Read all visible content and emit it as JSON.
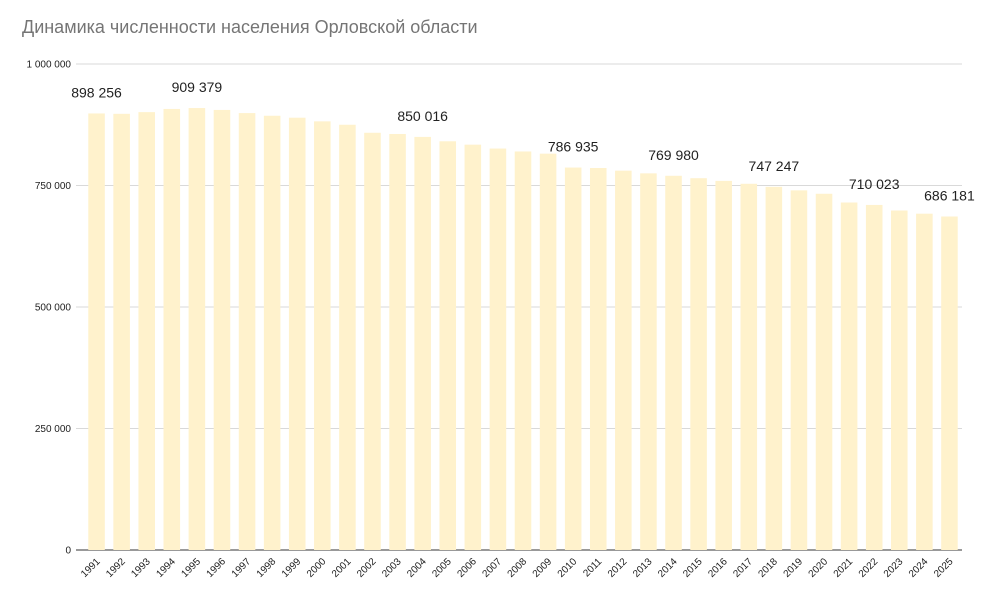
{
  "title": "Динамика численности населения Орловской области",
  "chart_data": {
    "type": "bar",
    "title": "Динамика численности населения Орловской области",
    "xlabel": "",
    "ylabel": "",
    "ylim": [
      0,
      1000000
    ],
    "y_ticks": [
      0,
      250000,
      500000,
      750000,
      1000000
    ],
    "y_tick_labels": [
      "0",
      "250 000",
      "500 000",
      "750 000",
      "1 000 000"
    ],
    "grid": true,
    "legend": "none",
    "bar_color": "#FFF2CC",
    "categories": [
      "1991",
      "1992",
      "1993",
      "1994",
      "1995",
      "1996",
      "1997",
      "1998",
      "1999",
      "2000",
      "2001",
      "2002",
      "2003",
      "2004",
      "2005",
      "2006",
      "2007",
      "2008",
      "2009",
      "2010",
      "2011",
      "2012",
      "2013",
      "2014",
      "2015",
      "2016",
      "2017",
      "2018",
      "2019",
      "2020",
      "2021",
      "2022",
      "2023",
      "2024",
      "2025"
    ],
    "values": [
      898256,
      897500,
      901000,
      907500,
      909379,
      905500,
      899000,
      893500,
      889500,
      882000,
      875000,
      858500,
      856000,
      850016,
      841000,
      834000,
      826000,
      820000,
      815500,
      786935,
      786000,
      780500,
      775000,
      769980,
      765000,
      759500,
      753500,
      747247,
      740000,
      733000,
      715000,
      710023,
      698500,
      692000,
      686181
    ],
    "data_labels": [
      {
        "category": "1991",
        "text": "898 256"
      },
      {
        "category": "1995",
        "text": "909 379"
      },
      {
        "category": "2004",
        "text": "850 016"
      },
      {
        "category": "2010",
        "text": "786 935"
      },
      {
        "category": "2014",
        "text": "769 980"
      },
      {
        "category": "2018",
        "text": "747 247"
      },
      {
        "category": "2022",
        "text": "710 023"
      },
      {
        "category": "2025",
        "text": "686 181"
      }
    ]
  }
}
